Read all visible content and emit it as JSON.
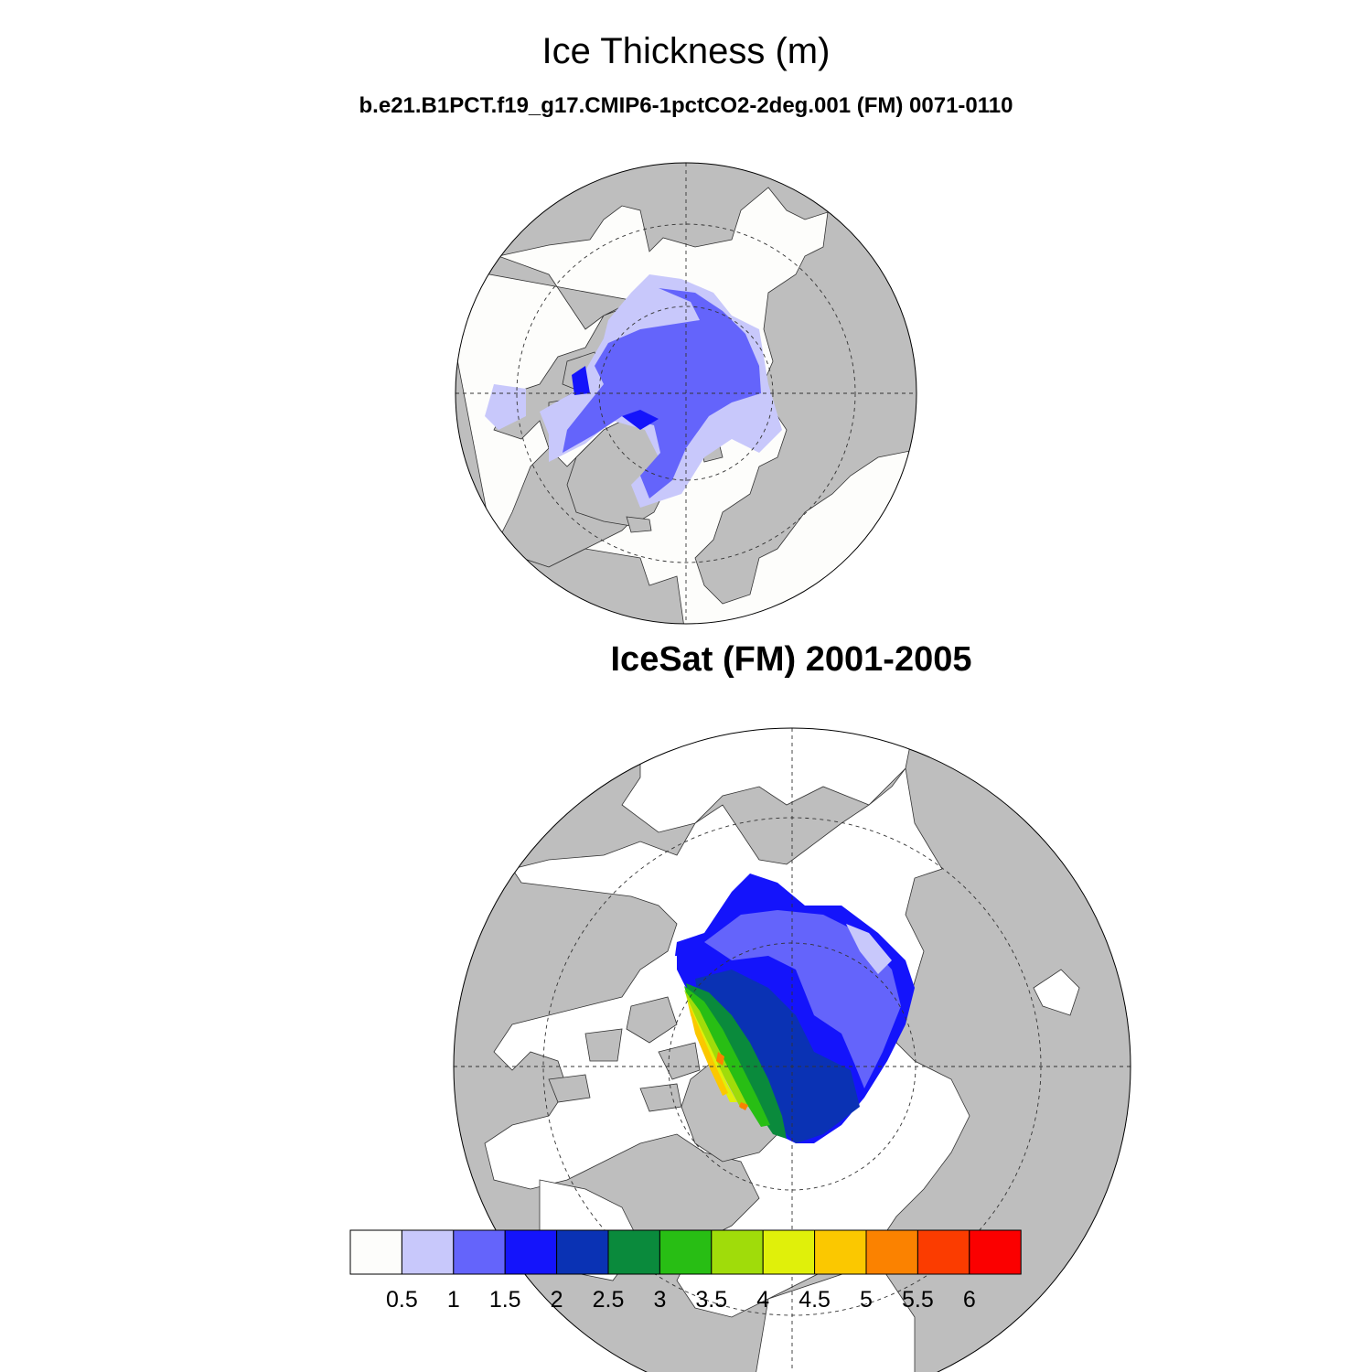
{
  "main_title": "Ice Thickness (m)",
  "panel1_title": "b.e21.B1PCT.f19_g17.CMIP6-1pctCO2-2deg.001 (FM) 0071-0110",
  "panel2_title": "IceSat (FM) 2001-2005",
  "colorbar": {
    "colors": [
      "#fdfdfb",
      "#c8c8fb",
      "#6464fb",
      "#1414fb",
      "#0a32b4",
      "#0a8a3c",
      "#28be14",
      "#a0dc0a",
      "#e0f00a",
      "#fbc800",
      "#fb8200",
      "#fb3c00",
      "#fb0000"
    ],
    "labels": [
      "0.5",
      "1",
      "1.5",
      "2",
      "2.5",
      "3",
      "3.5",
      "4",
      "4.5",
      "5",
      "5.5",
      "6"
    ]
  },
  "colors": {
    "land": "#bebebe",
    "ocean": "#fdfdfb",
    "ice_light": "#c8c8fb",
    "ice_mid": "#6464fb",
    "ice_dark": "#1414fb"
  }
}
